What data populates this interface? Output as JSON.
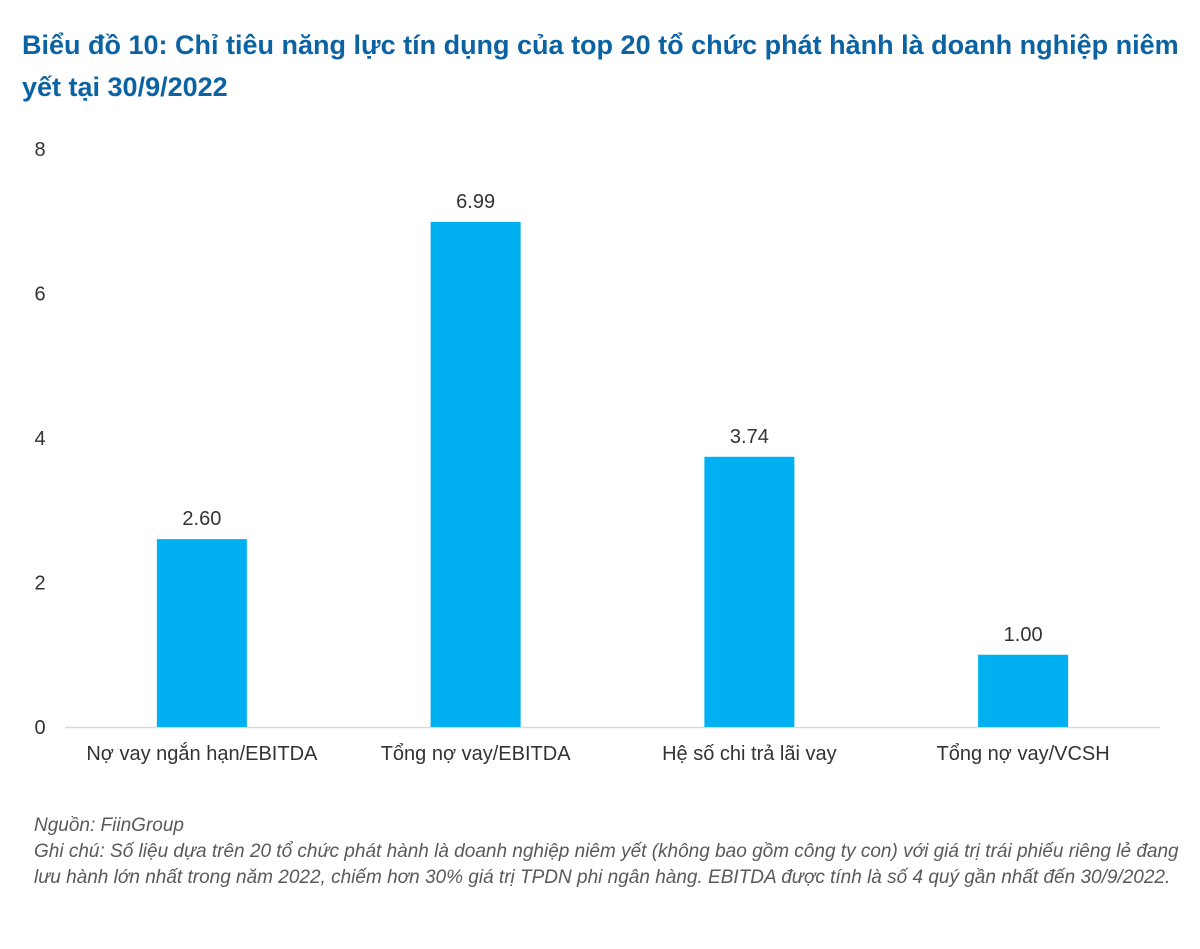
{
  "title": "Biểu đồ 10: Chỉ tiêu năng lực tín dụng của top 20 tổ chức phát hành là doanh nghiệp niêm yết tại 30/9/2022",
  "chart_data": {
    "type": "bar",
    "categories": [
      "Nợ vay ngắn hạn/EBITDA",
      "Tổng nợ vay/EBITDA",
      "Hệ số chi trả lãi vay",
      "Tổng nợ vay/VCSH"
    ],
    "values": [
      2.6,
      6.99,
      3.74,
      1.0
    ],
    "data_labels": [
      "2.60",
      "6.99",
      "3.74",
      "1.00"
    ],
    "yticks": [
      "0",
      "2",
      "4",
      "6",
      "8"
    ],
    "ylim": [
      0,
      8
    ],
    "grid": false,
    "bar_color": "#00b0f0"
  },
  "source": "Nguồn: FiinGroup",
  "note": "Ghi chú: Số liệu dựa trên 20 tổ chức phát hành là doanh nghiệp niêm yết (không bao gồm công ty con) với giá trị trái phiếu riêng lẻ đang lưu hành lớn nhất trong năm 2022, chiếm hơn 30% giá trị TPDN phi ngân hàng. EBITDA được tính là số 4 quý gần nhất đến 30/9/2022."
}
